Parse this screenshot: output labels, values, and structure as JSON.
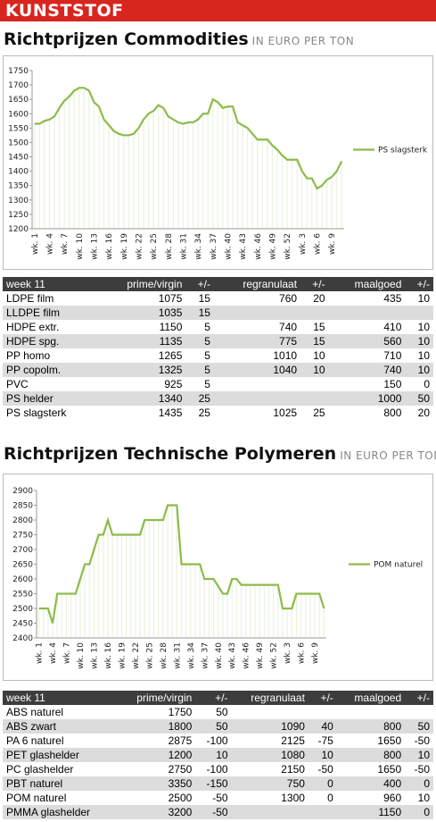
{
  "header": {
    "title": "KUNSTSTOF"
  },
  "sections": [
    {
      "title": "Richtprijzen Commodities",
      "unit": "IN EURO PER TON"
    },
    {
      "title": "Richtprijzen Technische Polymeren",
      "unit": "IN EURO PER TON"
    }
  ],
  "chart_data": [
    {
      "type": "line",
      "categories": [
        "wk. 1",
        null,
        null,
        "wk. 4",
        null,
        null,
        "wk. 7",
        null,
        null,
        "wk. 10",
        null,
        null,
        "wk. 13",
        null,
        null,
        "wk. 16",
        null,
        null,
        "wk. 19",
        null,
        null,
        "wk. 22",
        null,
        null,
        "wk. 25",
        null,
        null,
        "wk. 28",
        null,
        null,
        "wk. 31",
        null,
        null,
        "wk. 34",
        null,
        null,
        "wk. 37",
        null,
        null,
        "wk. 40",
        null,
        null,
        "wk. 43",
        null,
        null,
        "wk. 46",
        null,
        null,
        "wk. 49",
        null,
        null,
        "wk. 52",
        null,
        null,
        "wk. 3",
        null,
        null,
        "wk. 6",
        null,
        null,
        "wk. 9",
        null,
        null
      ],
      "series": [
        {
          "name": "PS slagsterk",
          "color": "#8dbb4a",
          "values": [
            1565,
            1565,
            1575,
            1580,
            1590,
            1620,
            1645,
            1660,
            1680,
            1690,
            1690,
            1680,
            1640,
            1625,
            1580,
            1560,
            1540,
            1530,
            1525,
            1525,
            1530,
            1550,
            1580,
            1600,
            1610,
            1630,
            1620,
            1590,
            1580,
            1570,
            1565,
            1570,
            1570,
            1580,
            1600,
            1600,
            1650,
            1640,
            1620,
            1625,
            1625,
            1570,
            1560,
            1550,
            1530,
            1510,
            1510,
            1510,
            1490,
            1475,
            1455,
            1440,
            1440,
            1440,
            1400,
            1375,
            1375,
            1340,
            1350,
            1370,
            1380,
            1400,
            1435
          ]
        }
      ],
      "ylim": [
        1200,
        1750
      ],
      "yticks": [
        1200,
        1250,
        1300,
        1350,
        1400,
        1450,
        1500,
        1550,
        1600,
        1650,
        1700,
        1750
      ]
    },
    {
      "type": "line",
      "categories": [
        "wk. 1",
        null,
        null,
        "wk. 4",
        null,
        null,
        "wk. 7",
        null,
        null,
        "wk. 10",
        null,
        null,
        "wk. 13",
        null,
        null,
        "wk. 16",
        null,
        null,
        "wk. 19",
        null,
        null,
        "wk. 22",
        null,
        null,
        "wk. 25",
        null,
        null,
        "wk. 28",
        null,
        null,
        "wk. 31",
        null,
        null,
        "wk. 34",
        null,
        null,
        "wk. 37",
        null,
        null,
        "wk. 40",
        null,
        null,
        "wk. 43",
        null,
        null,
        "wk. 46",
        null,
        null,
        "wk. 49",
        null,
        null,
        "wk. 52",
        null,
        null,
        "wk. 3",
        null,
        null,
        "wk. 6",
        null,
        null,
        "wk. 9",
        null,
        null
      ],
      "series": [
        {
          "name": "POM naturel",
          "color": "#8dbb4a",
          "values": [
            2500,
            2500,
            2500,
            2450,
            2550,
            2550,
            2550,
            2550,
            2550,
            2600,
            2650,
            2650,
            2700,
            2750,
            2750,
            2800,
            2750,
            2750,
            2750,
            2750,
            2750,
            2750,
            2750,
            2800,
            2800,
            2800,
            2800,
            2800,
            2850,
            2850,
            2850,
            2650,
            2650,
            2650,
            2650,
            2650,
            2600,
            2600,
            2600,
            2575,
            2550,
            2550,
            2600,
            2600,
            2580,
            2580,
            2580,
            2580,
            2580,
            2580,
            2580,
            2580,
            2580,
            2500,
            2500,
            2500,
            2550,
            2550,
            2550,
            2550,
            2550,
            2550,
            2500
          ]
        }
      ],
      "ylim": [
        2400,
        2900
      ],
      "yticks": [
        2400,
        2450,
        2500,
        2550,
        2600,
        2650,
        2700,
        2750,
        2800,
        2850,
        2900
      ]
    }
  ],
  "tables": [
    {
      "header": [
        "week 11",
        "prime/virgin",
        "+/-",
        "regranulaat",
        "+/-",
        "maalgoed",
        "+/-"
      ],
      "rows": [
        [
          "LDPE film",
          "1075",
          "15",
          "760",
          "20",
          "435",
          "10"
        ],
        [
          "LLDPE film",
          "1035",
          "15",
          null,
          null,
          null,
          null
        ],
        [
          "HDPE extr.",
          "1150",
          "5",
          "740",
          "15",
          "410",
          "10"
        ],
        [
          "HDPE spg.",
          "1135",
          "5",
          "775",
          "15",
          "560",
          "10"
        ],
        [
          "PP homo",
          "1265",
          "5",
          "1010",
          "10",
          "710",
          "10"
        ],
        [
          "PP copolm.",
          "1325",
          "5",
          "1040",
          "10",
          "740",
          "10"
        ],
        [
          "PVC",
          "925",
          "5",
          null,
          null,
          "150",
          "0"
        ],
        [
          "PS helder",
          "1340",
          "25",
          null,
          null,
          "1000",
          "50"
        ],
        [
          "PS slagsterk",
          "1435",
          "25",
          "1025",
          "25",
          "800",
          "20"
        ]
      ]
    },
    {
      "header": [
        "week 11",
        "prime/virgin",
        "+/-",
        "regranulaat",
        "+/-",
        "maalgoed",
        "+/-"
      ],
      "rows": [
        [
          "ABS naturel",
          "1750",
          "50",
          null,
          null,
          null,
          null
        ],
        [
          "ABS zwart",
          "1800",
          "50",
          "1090",
          "40",
          "800",
          "50"
        ],
        [
          "PA 6 naturel",
          "2875",
          "-100",
          "2125",
          "-75",
          "1650",
          "-50"
        ],
        [
          "PET glashelder",
          "1200",
          "10",
          "1080",
          "10",
          "800",
          "10"
        ],
        [
          "PC glashelder",
          "2750",
          "-100",
          "2150",
          "-50",
          "1650",
          "-50"
        ],
        [
          "PBT naturel",
          "3350",
          "-150",
          "750",
          "0",
          "400",
          "0"
        ],
        [
          "POM naturel",
          "2500",
          "-50",
          "1300",
          "0",
          "960",
          "10"
        ],
        [
          "PMMA glashelder",
          "3200",
          "-50",
          null,
          null,
          "1150",
          "0"
        ]
      ]
    }
  ]
}
